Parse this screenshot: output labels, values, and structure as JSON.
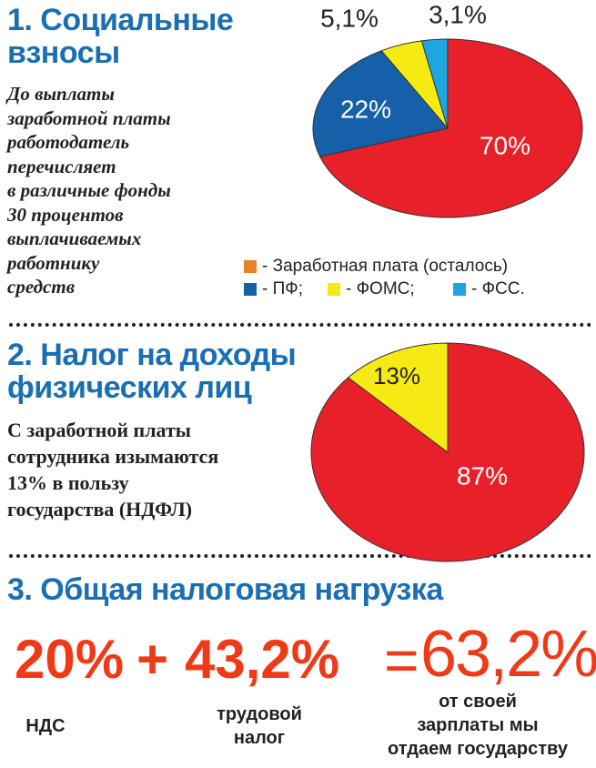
{
  "sections": [
    {
      "title_lines": [
        "1. Социальные",
        "взносы"
      ],
      "text_lines": [
        "До выплаты",
        "заработной платы",
        "работодатель",
        "перечисляет",
        "в различные фонды",
        "30 процентов",
        "выплачиваемых",
        "работнику",
        "средств"
      ]
    },
    {
      "title_lines": [
        "2. Налог на доходы",
        "физических лиц"
      ],
      "text_lines": [
        "С заработной платы",
        "сотрудника изымаются",
        "13% в пользу",
        "государства (НДФЛ)"
      ]
    },
    {
      "title": "3. Общая налоговая нагрузка"
    }
  ],
  "formula": {
    "parts": [
      "20%",
      "+",
      "43,2%",
      "=",
      "63,2%"
    ],
    "captions": [
      [
        "НДС"
      ],
      [
        "трудовой",
        "налог"
      ],
      [
        "от своей",
        "зарплаты мы",
        "отдаем государству"
      ]
    ]
  },
  "chart_data": [
    {
      "type": "pie",
      "categories": [
        "- Заработная плата (осталось)",
        "- ПФ;",
        "- ФОМС;",
        "- ФСС."
      ],
      "values": [
        70,
        22,
        5.1,
        3.1
      ],
      "value_labels": [
        "70%",
        "22%",
        "5,1%",
        "3,1%"
      ],
      "colors": [
        "#e8202a",
        "#1560a8",
        "#f5ea14",
        "#1ea6e0"
      ],
      "legend_colors": [
        "#e8822a",
        "#1560a8",
        "#f5ea14",
        "#1ea6e0"
      ]
    },
    {
      "type": "pie",
      "values": [
        87,
        13
      ],
      "value_labels": [
        "87%",
        "13%"
      ],
      "colors": [
        "#e8202a",
        "#f5ea14"
      ]
    }
  ]
}
